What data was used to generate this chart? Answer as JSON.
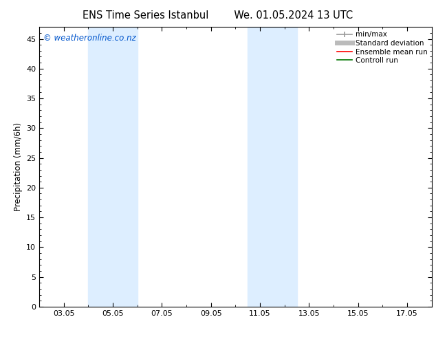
{
  "title_left": "ENS Time Series Istanbul",
  "title_right": "We. 01.05.2024 13 UTC",
  "ylabel": "Precipitation (mm/6h)",
  "ylim": [
    0,
    47
  ],
  "yticks": [
    0,
    5,
    10,
    15,
    20,
    25,
    30,
    35,
    40,
    45
  ],
  "xtick_labels": [
    "03.05",
    "05.05",
    "07.05",
    "09.05",
    "11.05",
    "13.05",
    "15.05",
    "17.05"
  ],
  "xtick_positions": [
    3,
    5,
    7,
    9,
    11,
    13,
    15,
    17
  ],
  "xlim": [
    2.0,
    18.0
  ],
  "background_color": "#ffffff",
  "plot_bg_color": "#ffffff",
  "shaded_regions": [
    {
      "xmin": 4.0,
      "xmax": 6.0,
      "color": "#ddeeff",
      "alpha": 1.0
    },
    {
      "xmin": 10.5,
      "xmax": 12.5,
      "color": "#ddeeff",
      "alpha": 1.0
    }
  ],
  "copyright_text": "© weatheronline.co.nz",
  "copyright_color": "#0055cc",
  "copyright_fontsize": 8.5,
  "legend_items": [
    {
      "label": "min/max",
      "color": "#999999",
      "lw": 1.2,
      "ls": "-"
    },
    {
      "label": "Standard deviation",
      "color": "#bbbbbb",
      "lw": 5,
      "ls": "-"
    },
    {
      "label": "Ensemble mean run",
      "color": "#ff0000",
      "lw": 1.2,
      "ls": "-"
    },
    {
      "label": "Controll run",
      "color": "#007700",
      "lw": 1.2,
      "ls": "-"
    }
  ],
  "title_fontsize": 10.5,
  "axis_label_fontsize": 8.5,
  "tick_fontsize": 8,
  "legend_fontsize": 7.5
}
